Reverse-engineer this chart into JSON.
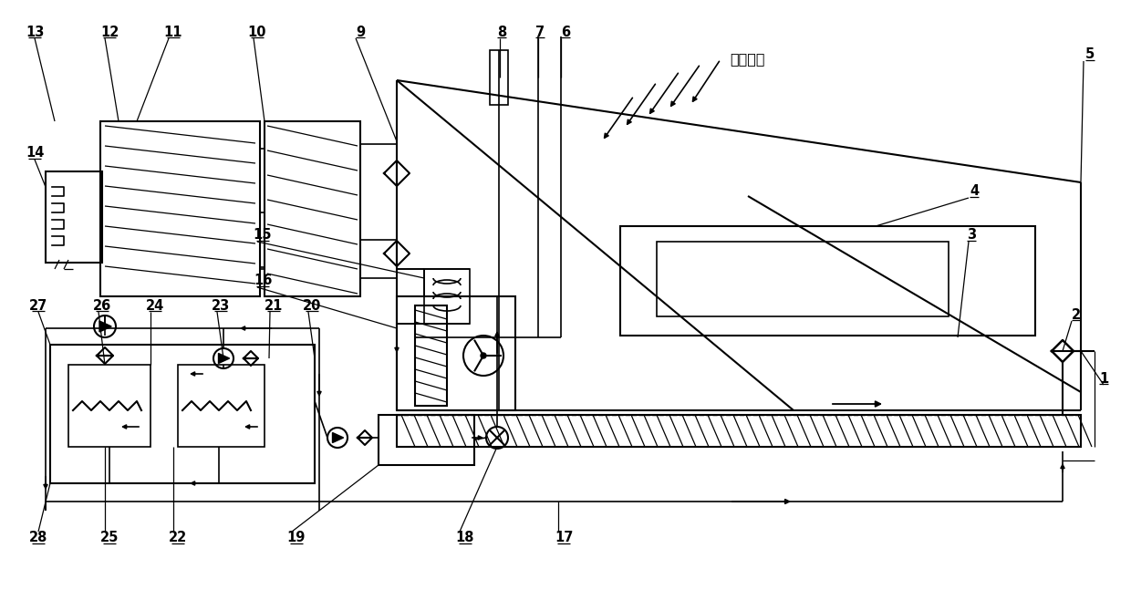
{
  "bg": "#ffffff",
  "solar_text": "太阳辐射",
  "figsize": [
    12.4,
    6.58
  ],
  "dpi": 100
}
